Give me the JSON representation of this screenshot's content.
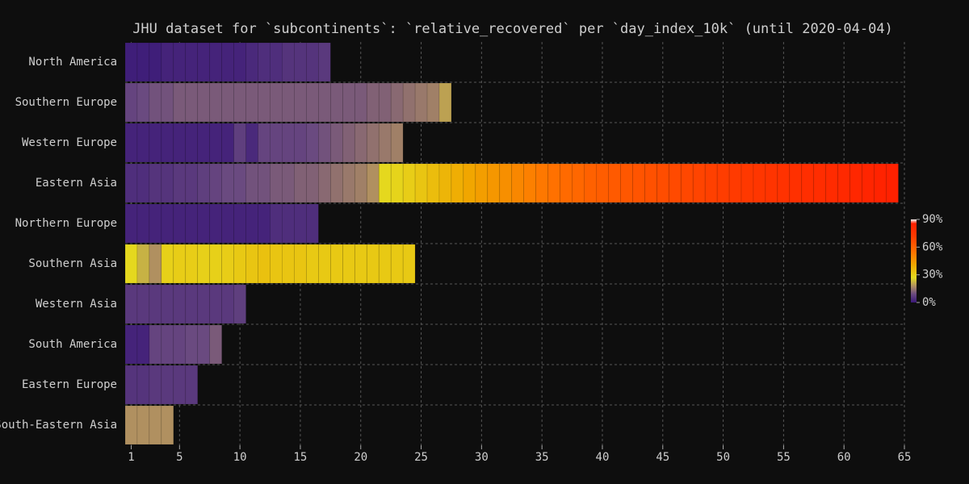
{
  "chart_data": {
    "type": "heatbar",
    "title": "JHU dataset for `subcontinents`: `relative_recovered` per `day_index_10k` (until 2020-04-04)",
    "rows": [
      {
        "name": "North America",
        "values": [
          1,
          1,
          1,
          2,
          2,
          2,
          2,
          2,
          2,
          2,
          3,
          4,
          4,
          5,
          5,
          5,
          6
        ]
      },
      {
        "name": "Southern Europe",
        "values": [
          8,
          9,
          10,
          10,
          11,
          11,
          11,
          11,
          11,
          11,
          11,
          11,
          11,
          11,
          11,
          11,
          11,
          11,
          11,
          11,
          12,
          12,
          13,
          14,
          15,
          16,
          20
        ]
      },
      {
        "name": "Western Europe",
        "values": [
          2,
          2,
          2,
          2,
          2,
          2,
          2,
          2,
          2,
          7,
          3,
          8,
          8,
          8,
          8,
          9,
          10,
          11,
          12,
          13,
          14,
          15,
          16
        ]
      },
      {
        "name": "Eastern Asia",
        "values": [
          4,
          4,
          5,
          5,
          6,
          6,
          7,
          8,
          9,
          9,
          10,
          10,
          11,
          11,
          12,
          12,
          13,
          14,
          15,
          16,
          18,
          28,
          29,
          31,
          33,
          35,
          37,
          39,
          41,
          43,
          45,
          47,
          49,
          51,
          53,
          55,
          57,
          58,
          60,
          61,
          62,
          63,
          64,
          65,
          66,
          67,
          68,
          69,
          70,
          71,
          72,
          73,
          74,
          75,
          76,
          77,
          78,
          79,
          80,
          81,
          82,
          83,
          84,
          85
        ]
      },
      {
        "name": "Northern Europe",
        "values": [
          2,
          2,
          2,
          2,
          2,
          2,
          2,
          2,
          2,
          2,
          2,
          2,
          4,
          4,
          4,
          4
        ]
      },
      {
        "name": "Southern Asia",
        "values": [
          28,
          22,
          18,
          30,
          31,
          31,
          30,
          30,
          31,
          32,
          33,
          34,
          33,
          33,
          33,
          32,
          32,
          32,
          32,
          32,
          32,
          32,
          32,
          32
        ]
      },
      {
        "name": "Western Asia",
        "values": [
          6,
          6,
          6,
          6,
          6,
          6,
          6,
          6,
          6,
          7
        ]
      },
      {
        "name": "South America",
        "values": [
          2,
          2,
          8,
          8,
          8,
          9,
          9,
          11
        ]
      },
      {
        "name": "Eastern Europe",
        "values": [
          5,
          5,
          6,
          6,
          6,
          6
        ]
      },
      {
        "name": "South-Eastern Asia",
        "values": [
          18,
          18,
          18,
          18
        ]
      }
    ],
    "xlim": [
      0.5,
      65
    ],
    "xticks": [
      1,
      5,
      10,
      15,
      20,
      25,
      30,
      35,
      40,
      45,
      50,
      55,
      60,
      65
    ],
    "clim": [
      0,
      90
    ],
    "cticks": [
      {
        "value": 0,
        "label": "0%"
      },
      {
        "value": 30,
        "label": "30%"
      },
      {
        "value": 60,
        "label": "60%"
      },
      {
        "value": 90,
        "label": "90%"
      }
    ],
    "colorscale": [
      [
        0,
        "#3a1878"
      ],
      [
        0.1,
        "#6a4a80"
      ],
      [
        0.2,
        "#b09060"
      ],
      [
        0.3,
        "#e4dc20"
      ],
      [
        0.45,
        "#f0a800"
      ],
      [
        0.6,
        "#ff7400"
      ],
      [
        0.8,
        "#ff3a00"
      ],
      [
        0.95,
        "#ff2000"
      ],
      [
        1,
        "#ffffff"
      ]
    ],
    "grid": true
  }
}
